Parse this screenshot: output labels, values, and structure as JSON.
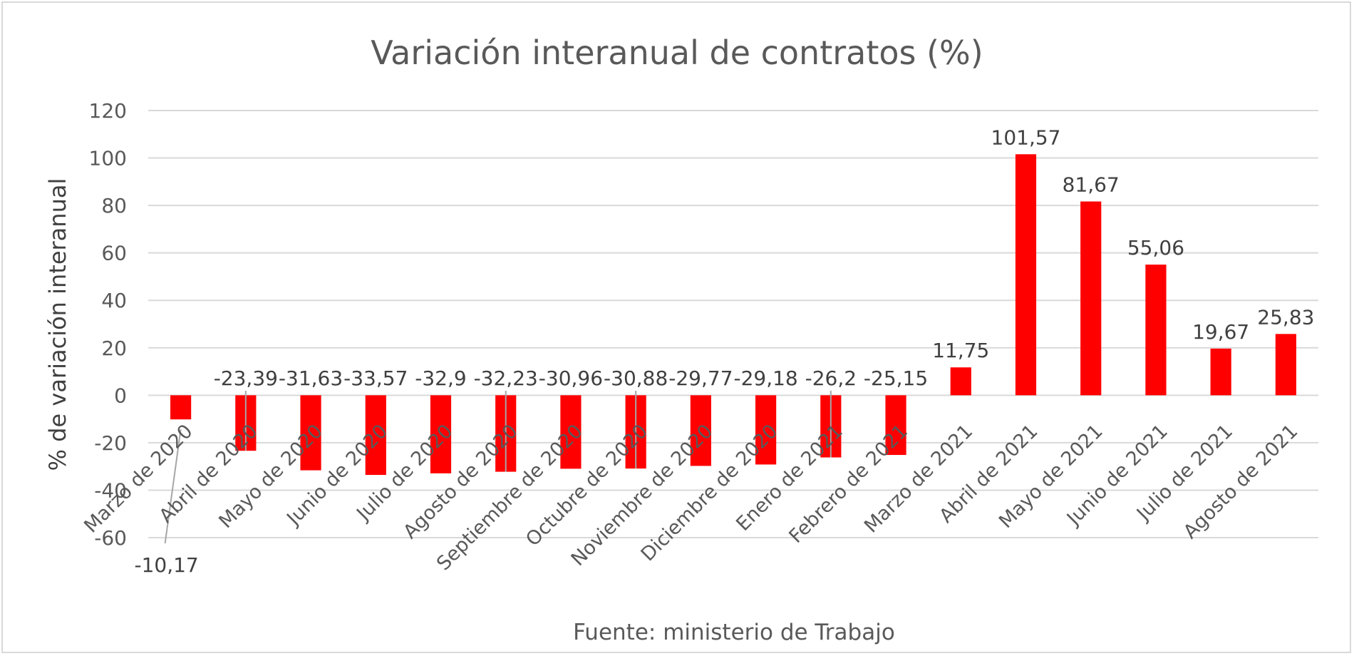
{
  "chart_data": {
    "type": "bar",
    "title": "Variación interanual de contratos  (%)",
    "xlabel": "",
    "ylabel": "% de variación interanual",
    "source": "Fuente: ministerio de Trabajo",
    "ylim": [
      -60,
      120
    ],
    "yticks": [
      -60,
      -40,
      -20,
      0,
      20,
      40,
      60,
      80,
      100,
      120
    ],
    "grid": true,
    "bar_color": "#ff0000",
    "categories": [
      "Marzo de 2020",
      "Abril de 2020",
      "Mayo de 2020",
      "Junio de 2020",
      "Julio de 2020",
      "Agosto de 2020",
      "Septiembre de 2020",
      "Octubre de 2020",
      "Noviembre de 2020",
      "Diciembre de 2020",
      "Enero de 2021",
      "Febrero de 2021",
      "Marzo de 2021",
      "Abril de 2021",
      "Mayo de 2021",
      "Junio de 2021",
      "Julio de 2021",
      "Agosto de 2021"
    ],
    "values": [
      -10.17,
      -23.39,
      -31.63,
      -33.57,
      -32.9,
      -32.23,
      -30.96,
      -30.88,
      -29.77,
      -29.18,
      -26.2,
      -25.15,
      11.75,
      101.57,
      81.67,
      55.06,
      19.67,
      25.83
    ],
    "value_labels": [
      "-10,17",
      "-23,39",
      "-31,63",
      "-33,57",
      "-32,9",
      "-32,23",
      "-30,96",
      "-30,88",
      "-29,77",
      "-29,18",
      "-26,2",
      "-25,15",
      "11,75",
      "101,57",
      "81,67",
      "55,06",
      "19,67",
      "25,83"
    ]
  }
}
